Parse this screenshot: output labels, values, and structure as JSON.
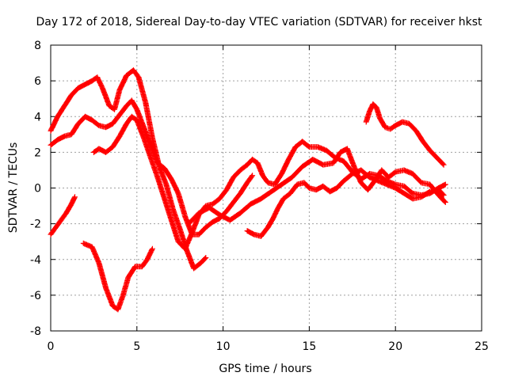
{
  "chart_data": {
    "type": "line",
    "title": "Day 172 of 2018, Sidereal Day-to-day VTEC variation (SDTVAR) for receiver hkst",
    "xlabel": "GPS time / hours",
    "ylabel": "SDTVAR / TECUs",
    "xlim": [
      0,
      25
    ],
    "ylim": [
      -8,
      8
    ],
    "xticks": [
      0,
      5,
      10,
      15,
      20,
      25
    ],
    "yticks": [
      -8,
      -6,
      -4,
      -2,
      0,
      2,
      4,
      6,
      8
    ],
    "grid": true,
    "marker": "+",
    "color": "#ff0000",
    "series": [
      {
        "name": "track-1",
        "points": [
          [
            0.0,
            -2.6
          ],
          [
            0.3,
            -2.2
          ],
          [
            0.6,
            -1.8
          ],
          [
            0.9,
            -1.4
          ],
          [
            1.2,
            -0.9
          ],
          [
            1.4,
            -0.5
          ]
        ]
      },
      {
        "name": "track-2",
        "points": [
          [
            0.0,
            3.2
          ],
          [
            0.4,
            4.0
          ],
          [
            0.8,
            4.6
          ],
          [
            1.2,
            5.2
          ],
          [
            1.6,
            5.6
          ],
          [
            2.0,
            5.8
          ],
          [
            2.4,
            6.0
          ],
          [
            2.7,
            6.2
          ],
          [
            3.0,
            5.6
          ],
          [
            3.4,
            4.6
          ],
          [
            3.7,
            4.4
          ],
          [
            4.0,
            5.5
          ],
          [
            4.4,
            6.3
          ],
          [
            4.8,
            6.6
          ],
          [
            5.1,
            6.2
          ],
          [
            5.5,
            4.8
          ],
          [
            5.9,
            2.8
          ],
          [
            6.3,
            1.2
          ],
          [
            6.7,
            0.2
          ],
          [
            7.1,
            -1.2
          ],
          [
            7.5,
            -2.3
          ],
          [
            7.9,
            -3.5
          ],
          [
            8.3,
            -4.5
          ],
          [
            8.7,
            -4.2
          ],
          [
            9.0,
            -3.9
          ]
        ]
      },
      {
        "name": "track-3",
        "points": [
          [
            0.0,
            2.4
          ],
          [
            0.4,
            2.7
          ],
          [
            0.8,
            2.9
          ],
          [
            1.2,
            3.0
          ],
          [
            1.6,
            3.6
          ],
          [
            2.0,
            4.0
          ],
          [
            2.4,
            3.8
          ],
          [
            2.8,
            3.5
          ],
          [
            3.2,
            3.4
          ],
          [
            3.6,
            3.6
          ],
          [
            4.0,
            4.1
          ],
          [
            4.4,
            4.6
          ],
          [
            4.7,
            4.9
          ],
          [
            5.0,
            4.4
          ],
          [
            5.4,
            3.4
          ],
          [
            5.8,
            2.4
          ],
          [
            6.2,
            1.4
          ],
          [
            6.6,
            1.1
          ],
          [
            7.0,
            0.5
          ],
          [
            7.4,
            -0.3
          ],
          [
            7.8,
            -1.6
          ],
          [
            8.2,
            -2.6
          ],
          [
            8.6,
            -2.6
          ],
          [
            9.0,
            -2.2
          ],
          [
            9.4,
            -1.9
          ],
          [
            9.8,
            -1.7
          ],
          [
            10.2,
            -1.3
          ],
          [
            10.6,
            -0.8
          ],
          [
            11.0,
            -0.3
          ],
          [
            11.4,
            0.3
          ],
          [
            11.7,
            0.7
          ]
        ]
      },
      {
        "name": "track-4",
        "points": [
          [
            2.5,
            2.0
          ],
          [
            2.8,
            2.2
          ],
          [
            3.2,
            2.0
          ],
          [
            3.6,
            2.3
          ],
          [
            4.0,
            2.9
          ],
          [
            4.4,
            3.6
          ],
          [
            4.7,
            4.0
          ],
          [
            5.0,
            3.8
          ],
          [
            5.4,
            2.8
          ],
          [
            5.8,
            1.7
          ],
          [
            6.2,
            0.6
          ],
          [
            6.6,
            -0.6
          ],
          [
            7.0,
            -1.8
          ],
          [
            7.4,
            -3.0
          ],
          [
            7.8,
            -3.4
          ],
          [
            8.2,
            -2.5
          ],
          [
            8.6,
            -1.5
          ],
          [
            9.0,
            -1.0
          ],
          [
            9.4,
            -0.9
          ],
          [
            9.8,
            -0.6
          ],
          [
            10.2,
            -0.1
          ],
          [
            10.6,
            0.6
          ],
          [
            11.0,
            1.0
          ],
          [
            11.4,
            1.3
          ],
          [
            11.7,
            1.6
          ],
          [
            12.0,
            1.4
          ],
          [
            12.3,
            0.7
          ],
          [
            12.6,
            0.3
          ],
          [
            13.0,
            0.2
          ],
          [
            13.4,
            0.8
          ],
          [
            13.8,
            1.6
          ],
          [
            14.2,
            2.3
          ],
          [
            14.6,
            2.6
          ],
          [
            15.0,
            2.3
          ],
          [
            15.5,
            2.3
          ],
          [
            16.0,
            2.1
          ],
          [
            16.5,
            1.7
          ],
          [
            17.0,
            1.5
          ],
          [
            17.5,
            0.9
          ],
          [
            18.0,
            0.5
          ],
          [
            18.5,
            0.8
          ],
          [
            19.0,
            0.7
          ],
          [
            19.5,
            0.4
          ],
          [
            20.0,
            0.2
          ],
          [
            20.5,
            0.1
          ],
          [
            21.0,
            -0.3
          ],
          [
            21.5,
            -0.4
          ],
          [
            22.0,
            -0.3
          ],
          [
            22.5,
            0.0
          ],
          [
            22.9,
            0.2
          ]
        ]
      },
      {
        "name": "track-5",
        "points": [
          [
            1.9,
            -3.1
          ],
          [
            2.4,
            -3.3
          ],
          [
            2.8,
            -4.2
          ],
          [
            3.2,
            -5.6
          ],
          [
            3.6,
            -6.6
          ],
          [
            3.9,
            -6.8
          ],
          [
            4.2,
            -6.0
          ],
          [
            4.5,
            -5.0
          ],
          [
            4.9,
            -4.4
          ],
          [
            5.3,
            -4.4
          ],
          [
            5.6,
            -4.0
          ],
          [
            5.9,
            -3.4
          ]
        ]
      },
      {
        "name": "track-6",
        "points": [
          [
            8.0,
            -2.0
          ],
          [
            8.6,
            -1.4
          ],
          [
            9.2,
            -1.1
          ],
          [
            9.8,
            -1.5
          ],
          [
            10.4,
            -1.8
          ],
          [
            11.0,
            -1.4
          ],
          [
            11.6,
            -0.9
          ],
          [
            12.2,
            -0.6
          ],
          [
            12.8,
            -0.2
          ],
          [
            13.4,
            0.2
          ],
          [
            14.0,
            0.6
          ],
          [
            14.6,
            1.2
          ],
          [
            15.2,
            1.6
          ],
          [
            15.8,
            1.3
          ],
          [
            16.4,
            1.4
          ],
          [
            16.8,
            2.0
          ],
          [
            17.2,
            2.2
          ],
          [
            17.6,
            1.2
          ],
          [
            18.0,
            0.3
          ],
          [
            18.4,
            -0.1
          ],
          [
            18.8,
            0.4
          ],
          [
            19.2,
            1.0
          ],
          [
            19.6,
            0.6
          ],
          [
            20.0,
            0.9
          ],
          [
            20.5,
            1.0
          ],
          [
            21.0,
            0.8
          ],
          [
            21.5,
            0.3
          ],
          [
            22.0,
            0.2
          ],
          [
            22.5,
            -0.4
          ],
          [
            22.9,
            -0.8
          ]
        ]
      },
      {
        "name": "track-7",
        "points": [
          [
            11.4,
            -2.4
          ],
          [
            11.8,
            -2.6
          ],
          [
            12.2,
            -2.7
          ],
          [
            12.6,
            -2.2
          ],
          [
            12.9,
            -1.7
          ],
          [
            13.2,
            -1.1
          ],
          [
            13.5,
            -0.6
          ],
          [
            13.9,
            -0.3
          ],
          [
            14.3,
            0.2
          ],
          [
            14.7,
            0.3
          ],
          [
            15.0,
            0.0
          ],
          [
            15.4,
            -0.1
          ],
          [
            15.8,
            0.1
          ],
          [
            16.2,
            -0.2
          ],
          [
            16.6,
            0.0
          ],
          [
            17.0,
            0.4
          ],
          [
            17.5,
            0.8
          ],
          [
            18.0,
            1.0
          ],
          [
            18.5,
            0.6
          ],
          [
            19.0,
            0.4
          ],
          [
            19.5,
            0.2
          ],
          [
            20.0,
            0.0
          ],
          [
            20.5,
            -0.3
          ],
          [
            21.0,
            -0.6
          ],
          [
            21.5,
            -0.5
          ],
          [
            22.0,
            -0.2
          ],
          [
            22.5,
            -0.1
          ],
          [
            22.8,
            -0.4
          ]
        ]
      },
      {
        "name": "track-8",
        "points": [
          [
            18.3,
            3.7
          ],
          [
            18.5,
            4.3
          ],
          [
            18.7,
            4.7
          ],
          [
            18.9,
            4.5
          ],
          [
            19.1,
            3.9
          ],
          [
            19.4,
            3.4
          ],
          [
            19.7,
            3.3
          ],
          [
            20.0,
            3.5
          ],
          [
            20.4,
            3.7
          ],
          [
            20.8,
            3.6
          ],
          [
            21.2,
            3.2
          ],
          [
            21.6,
            2.6
          ],
          [
            22.0,
            2.1
          ],
          [
            22.4,
            1.7
          ],
          [
            22.8,
            1.3
          ]
        ]
      }
    ]
  }
}
